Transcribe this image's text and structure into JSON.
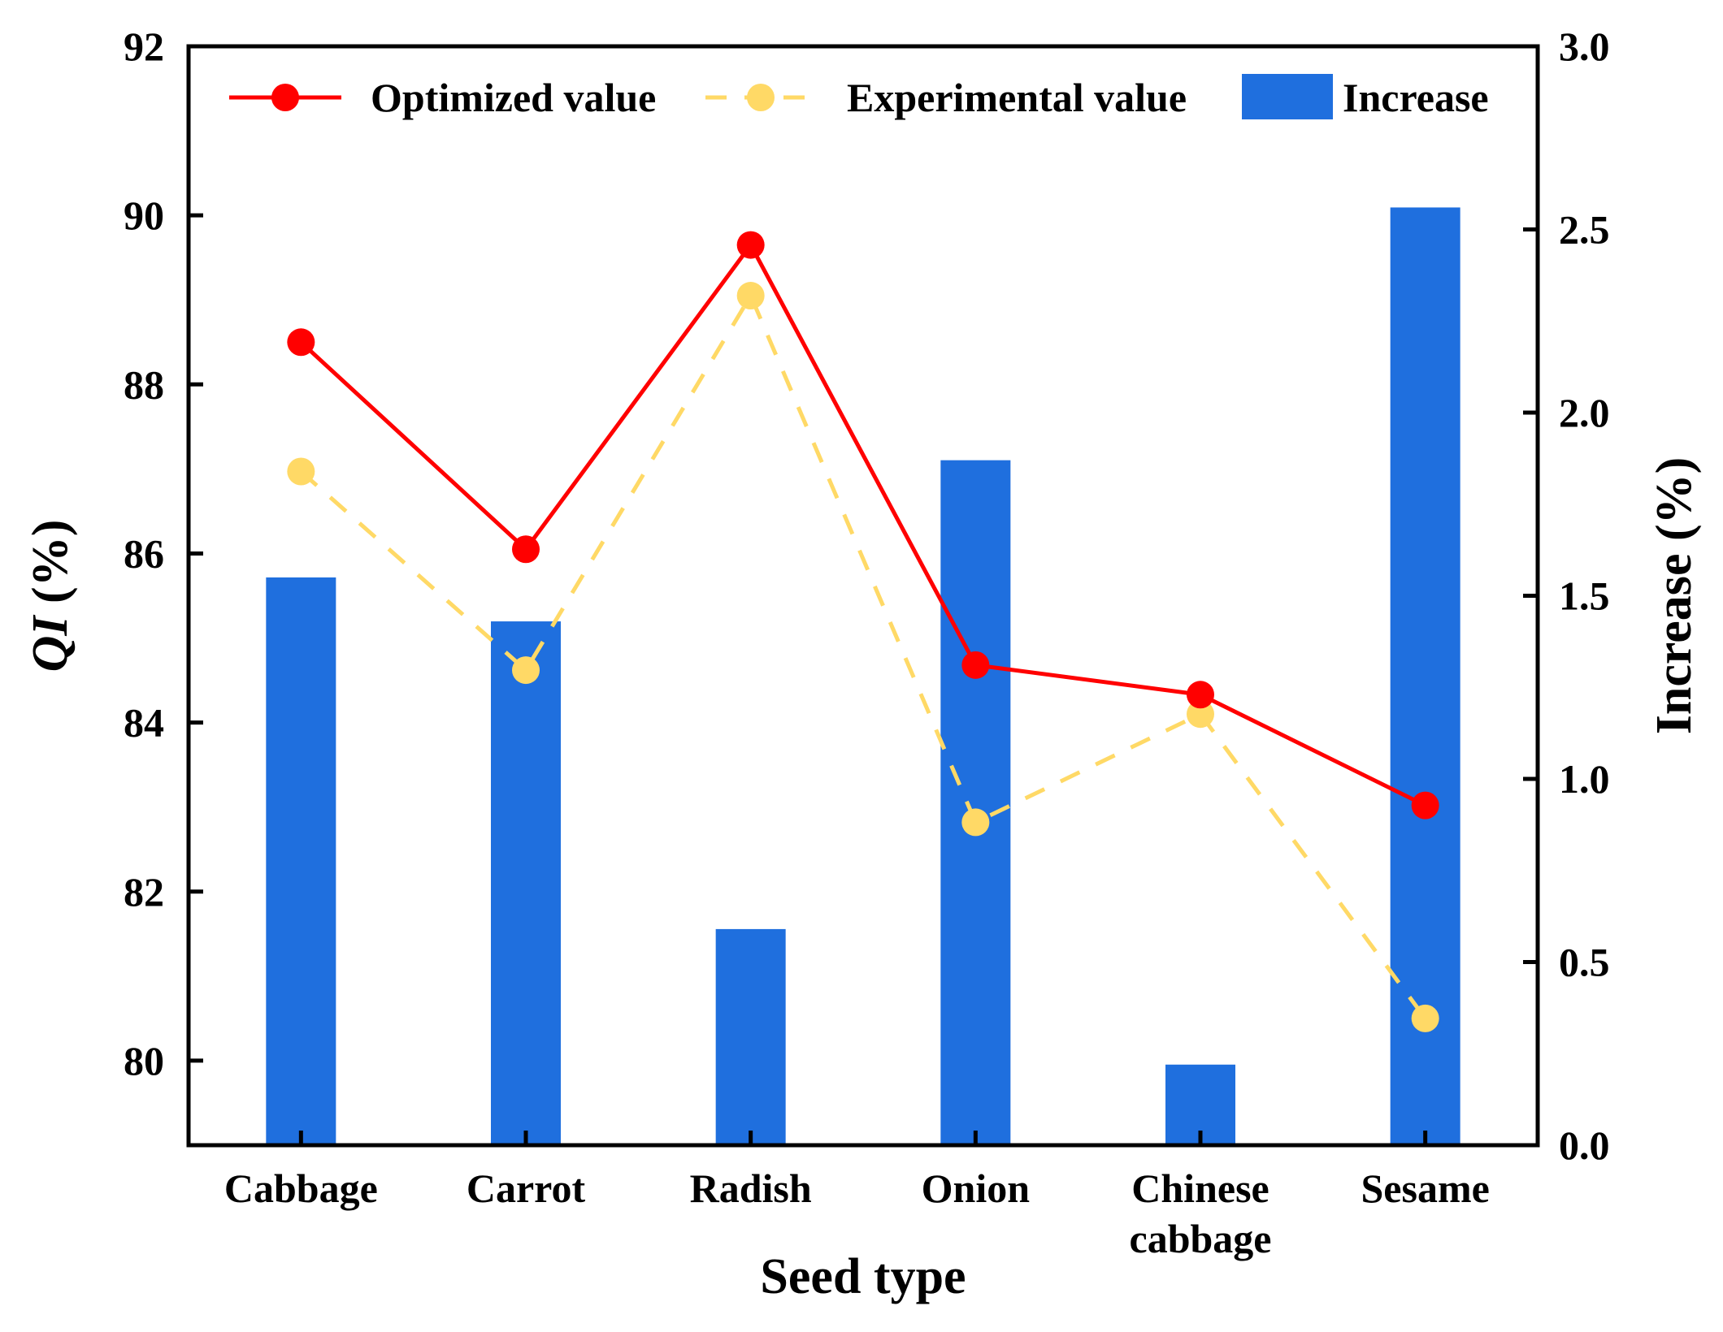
{
  "chart_data": {
    "type": "bar",
    "categories": [
      "Cabbage",
      "Carrot",
      "Radish",
      "Onion",
      "Chinese\ncabbage",
      "Sesame"
    ],
    "xlabel": "Seed type",
    "ylabel_left": {
      "italic": "QI",
      "rest": " (%)"
    },
    "ylabel_right": "Increase (%)",
    "y_left": {
      "range": [
        79,
        92
      ],
      "ticks": [
        80,
        82,
        84,
        86,
        88,
        90,
        92
      ]
    },
    "y_right": {
      "range": [
        0,
        3
      ],
      "ticks": [
        "0.0",
        "0.5",
        "1.0",
        "1.5",
        "2.0",
        "2.5",
        "3.0"
      ]
    },
    "legend_position": "top",
    "series": [
      {
        "name": "Optimized value",
        "type": "line",
        "axis": "left",
        "style": "solid",
        "color": "#ff0000",
        "values": [
          88.5,
          86.05,
          89.65,
          84.68,
          84.33,
          83.02
        ]
      },
      {
        "name": "Experimental value",
        "type": "line",
        "axis": "left",
        "style": "dashed",
        "color": "#ffd966",
        "values": [
          86.97,
          84.62,
          89.05,
          82.82,
          84.1,
          80.5
        ]
      },
      {
        "name": "Increase",
        "type": "bar",
        "axis": "right",
        "color": "#1f6fde",
        "values": [
          1.55,
          1.43,
          0.59,
          1.87,
          0.22,
          2.56
        ]
      }
    ]
  }
}
